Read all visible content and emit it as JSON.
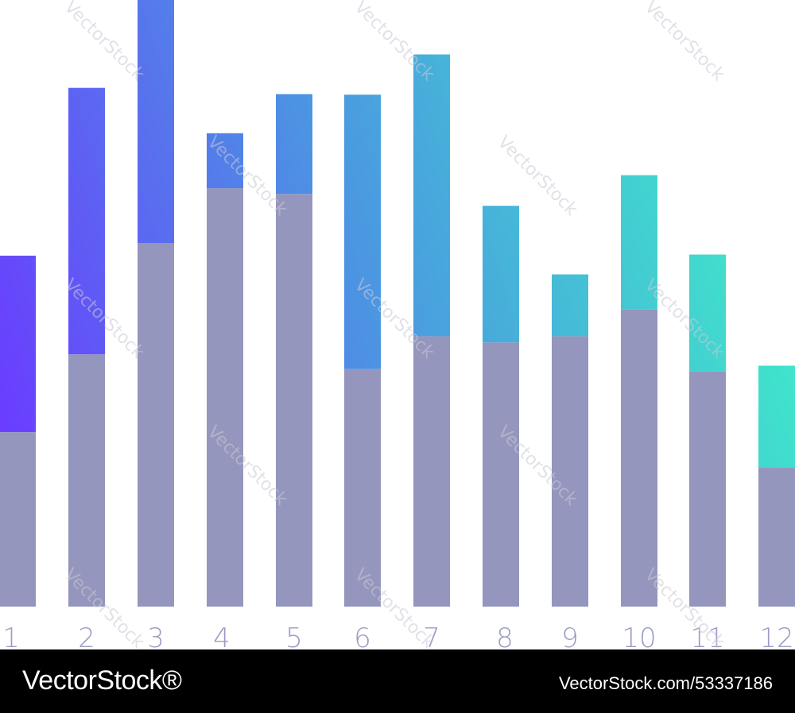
{
  "chart_data": {
    "type": "bar",
    "stacked": true,
    "categories": [
      "1",
      "2",
      "3",
      "4",
      "5",
      "6",
      "7",
      "8",
      "9",
      "10",
      "11",
      "12"
    ],
    "series": [
      {
        "values": [
          3.08,
          4.45,
          6.41,
          7.38,
          7.28,
          4.19,
          4.77,
          4.66,
          4.77,
          5.24,
          4.15,
          2.45
        ]
      },
      {
        "values": [
          3.11,
          4.7,
          4.31,
          0.97,
          1.76,
          4.84,
          4.97,
          2.41,
          1.09,
          2.37,
          2.06,
          1.8
        ]
      }
    ],
    "ylim": [
      0,
      10.7
    ],
    "grid": false,
    "colors": {
      "base": "#9496bd",
      "gradient_start": "#6a3cff",
      "gradient_mid": "#4a9be0",
      "gradient_end": "#3ef0c8"
    }
  },
  "watermark": "VectorStock",
  "footer": {
    "brand": "VectorStock®",
    "image_id": "VectorStock.com/53337186"
  }
}
